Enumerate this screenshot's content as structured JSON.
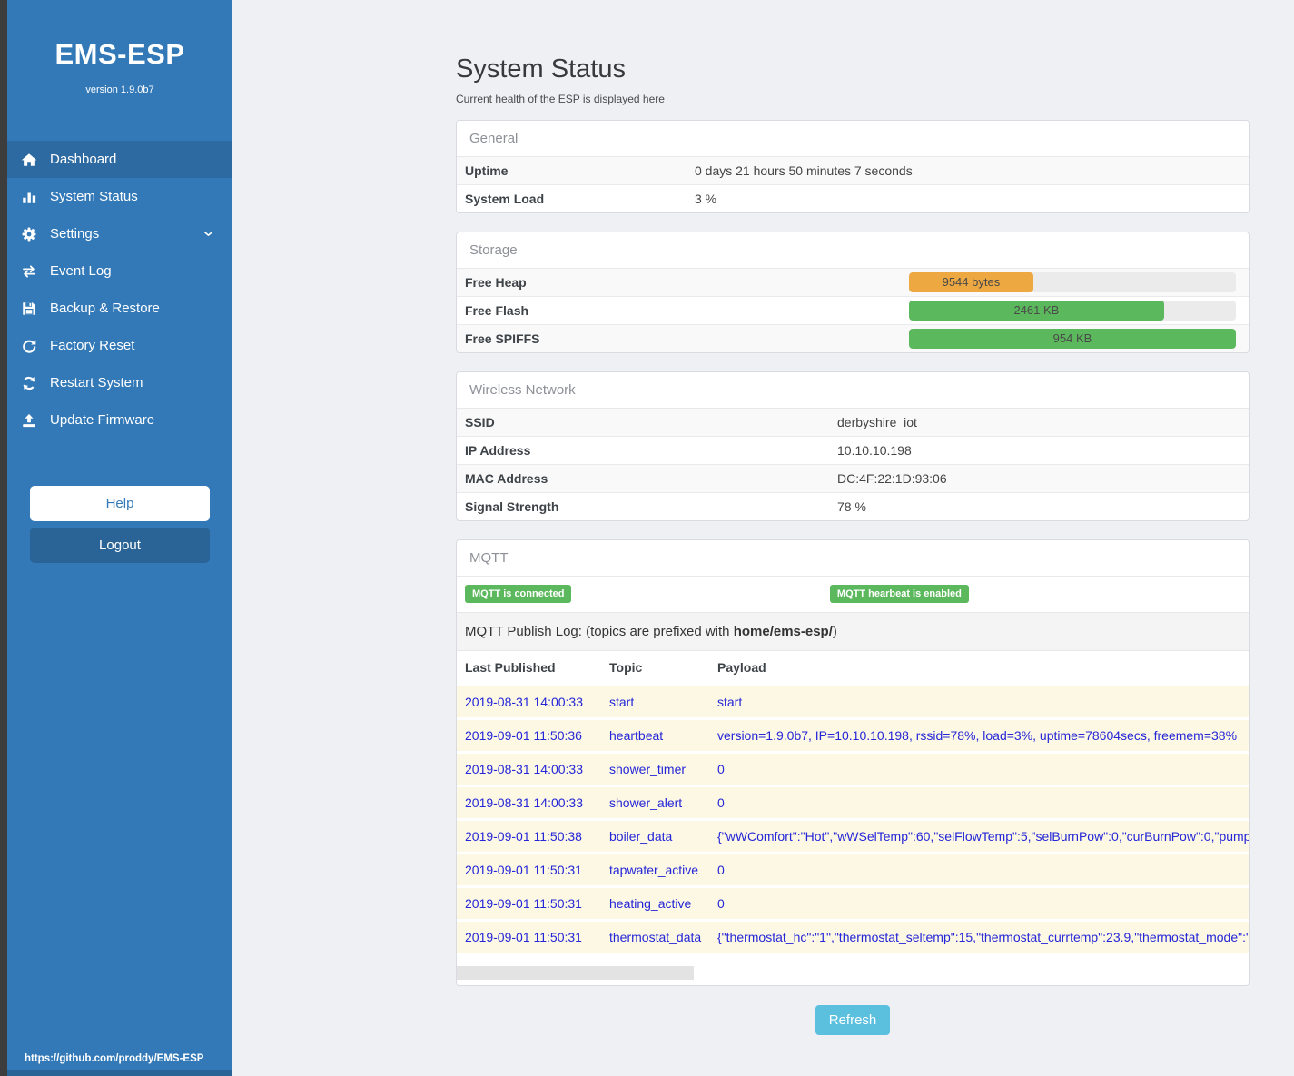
{
  "sidebar": {
    "title": "EMS-ESP",
    "version": "version 1.9.0b7",
    "items": [
      {
        "label": "Dashboard",
        "icon": "home-icon",
        "active": true
      },
      {
        "label": "System Status",
        "icon": "bar-chart-icon",
        "active": false
      },
      {
        "label": "Settings",
        "icon": "gear-icon",
        "active": false,
        "chevron": true
      },
      {
        "label": "Event Log",
        "icon": "swap-arrows-icon",
        "active": false
      },
      {
        "label": "Backup & Restore",
        "icon": "floppy-icon",
        "active": false
      },
      {
        "label": "Factory Reset",
        "icon": "undo-icon",
        "active": false
      },
      {
        "label": "Restart System",
        "icon": "refresh-icon",
        "active": false
      },
      {
        "label": "Update Firmware",
        "icon": "upload-icon",
        "active": false
      }
    ],
    "help_label": "Help",
    "logout_label": "Logout",
    "footer_url": "https://github.com/proddy/EMS-ESP"
  },
  "page": {
    "title": "System Status",
    "subtitle": "Current health of the ESP is displayed here",
    "refresh_label": "Refresh"
  },
  "general": {
    "header": "General",
    "rows": [
      {
        "label": "Uptime",
        "value": "0 days 21 hours 50 minutes 7 seconds"
      },
      {
        "label": "System Load",
        "value": "3 %"
      }
    ]
  },
  "storage": {
    "header": "Storage",
    "rows": [
      {
        "label": "Free Heap",
        "value": "9544 bytes",
        "percent": 38,
        "color": "#eda841"
      },
      {
        "label": "Free Flash",
        "value": "2461 KB",
        "percent": 78,
        "color": "#5cb85c"
      },
      {
        "label": "Free SPIFFS",
        "value": "954 KB",
        "percent": 100,
        "color": "#5cb85c"
      }
    ]
  },
  "wireless": {
    "header": "Wireless Network",
    "rows": [
      {
        "label": "SSID",
        "value": "derbyshire_iot"
      },
      {
        "label": "IP Address",
        "value": "10.10.10.198"
      },
      {
        "label": "MAC Address",
        "value": "DC:4F:22:1D:93:06"
      },
      {
        "label": "Signal Strength",
        "value": "78 %"
      }
    ]
  },
  "mqtt": {
    "header": "MQTT",
    "badges": [
      "MQTT is connected",
      "MQTT hearbeat is enabled"
    ],
    "publish_log": {
      "prefix_text": "MQTT Publish Log: (topics are prefixed with ",
      "bold_text": "home/ems-esp/",
      "suffix_text": ")"
    },
    "table": {
      "headers": [
        "Last Published",
        "Topic",
        "Payload"
      ],
      "rows": [
        [
          "2019-08-31 14:00:33",
          "start",
          "start"
        ],
        [
          "2019-09-01 11:50:36",
          "heartbeat",
          "version=1.9.0b7, IP=10.10.10.198, rssid=78%, load=3%, uptime=78604secs, freemem=38%"
        ],
        [
          "2019-08-31 14:00:33",
          "shower_timer",
          "0"
        ],
        [
          "2019-08-31 14:00:33",
          "shower_alert",
          "0"
        ],
        [
          "2019-09-01 11:50:38",
          "boiler_data",
          "{\"wWComfort\":\"Hot\",\"wWSelTemp\":60,\"selFlowTemp\":5,\"selBurnPow\":0,\"curBurnPow\":0,\"pump"
        ],
        [
          "2019-09-01 11:50:31",
          "tapwater_active",
          "0"
        ],
        [
          "2019-09-01 11:50:31",
          "heating_active",
          "0"
        ],
        [
          "2019-09-01 11:50:31",
          "thermostat_data",
          "{\"thermostat_hc\":\"1\",\"thermostat_seltemp\":15,\"thermostat_currtemp\":23.9,\"thermostat_mode\":\""
        ]
      ]
    }
  },
  "colors": {
    "sidebar": "#3379b7",
    "sidebar_active": "#2d6aa1",
    "accent": "#337ab7",
    "success": "#5cb85c",
    "warning": "#eda841",
    "info": "#5bc0de",
    "log_text": "#2526d8"
  }
}
